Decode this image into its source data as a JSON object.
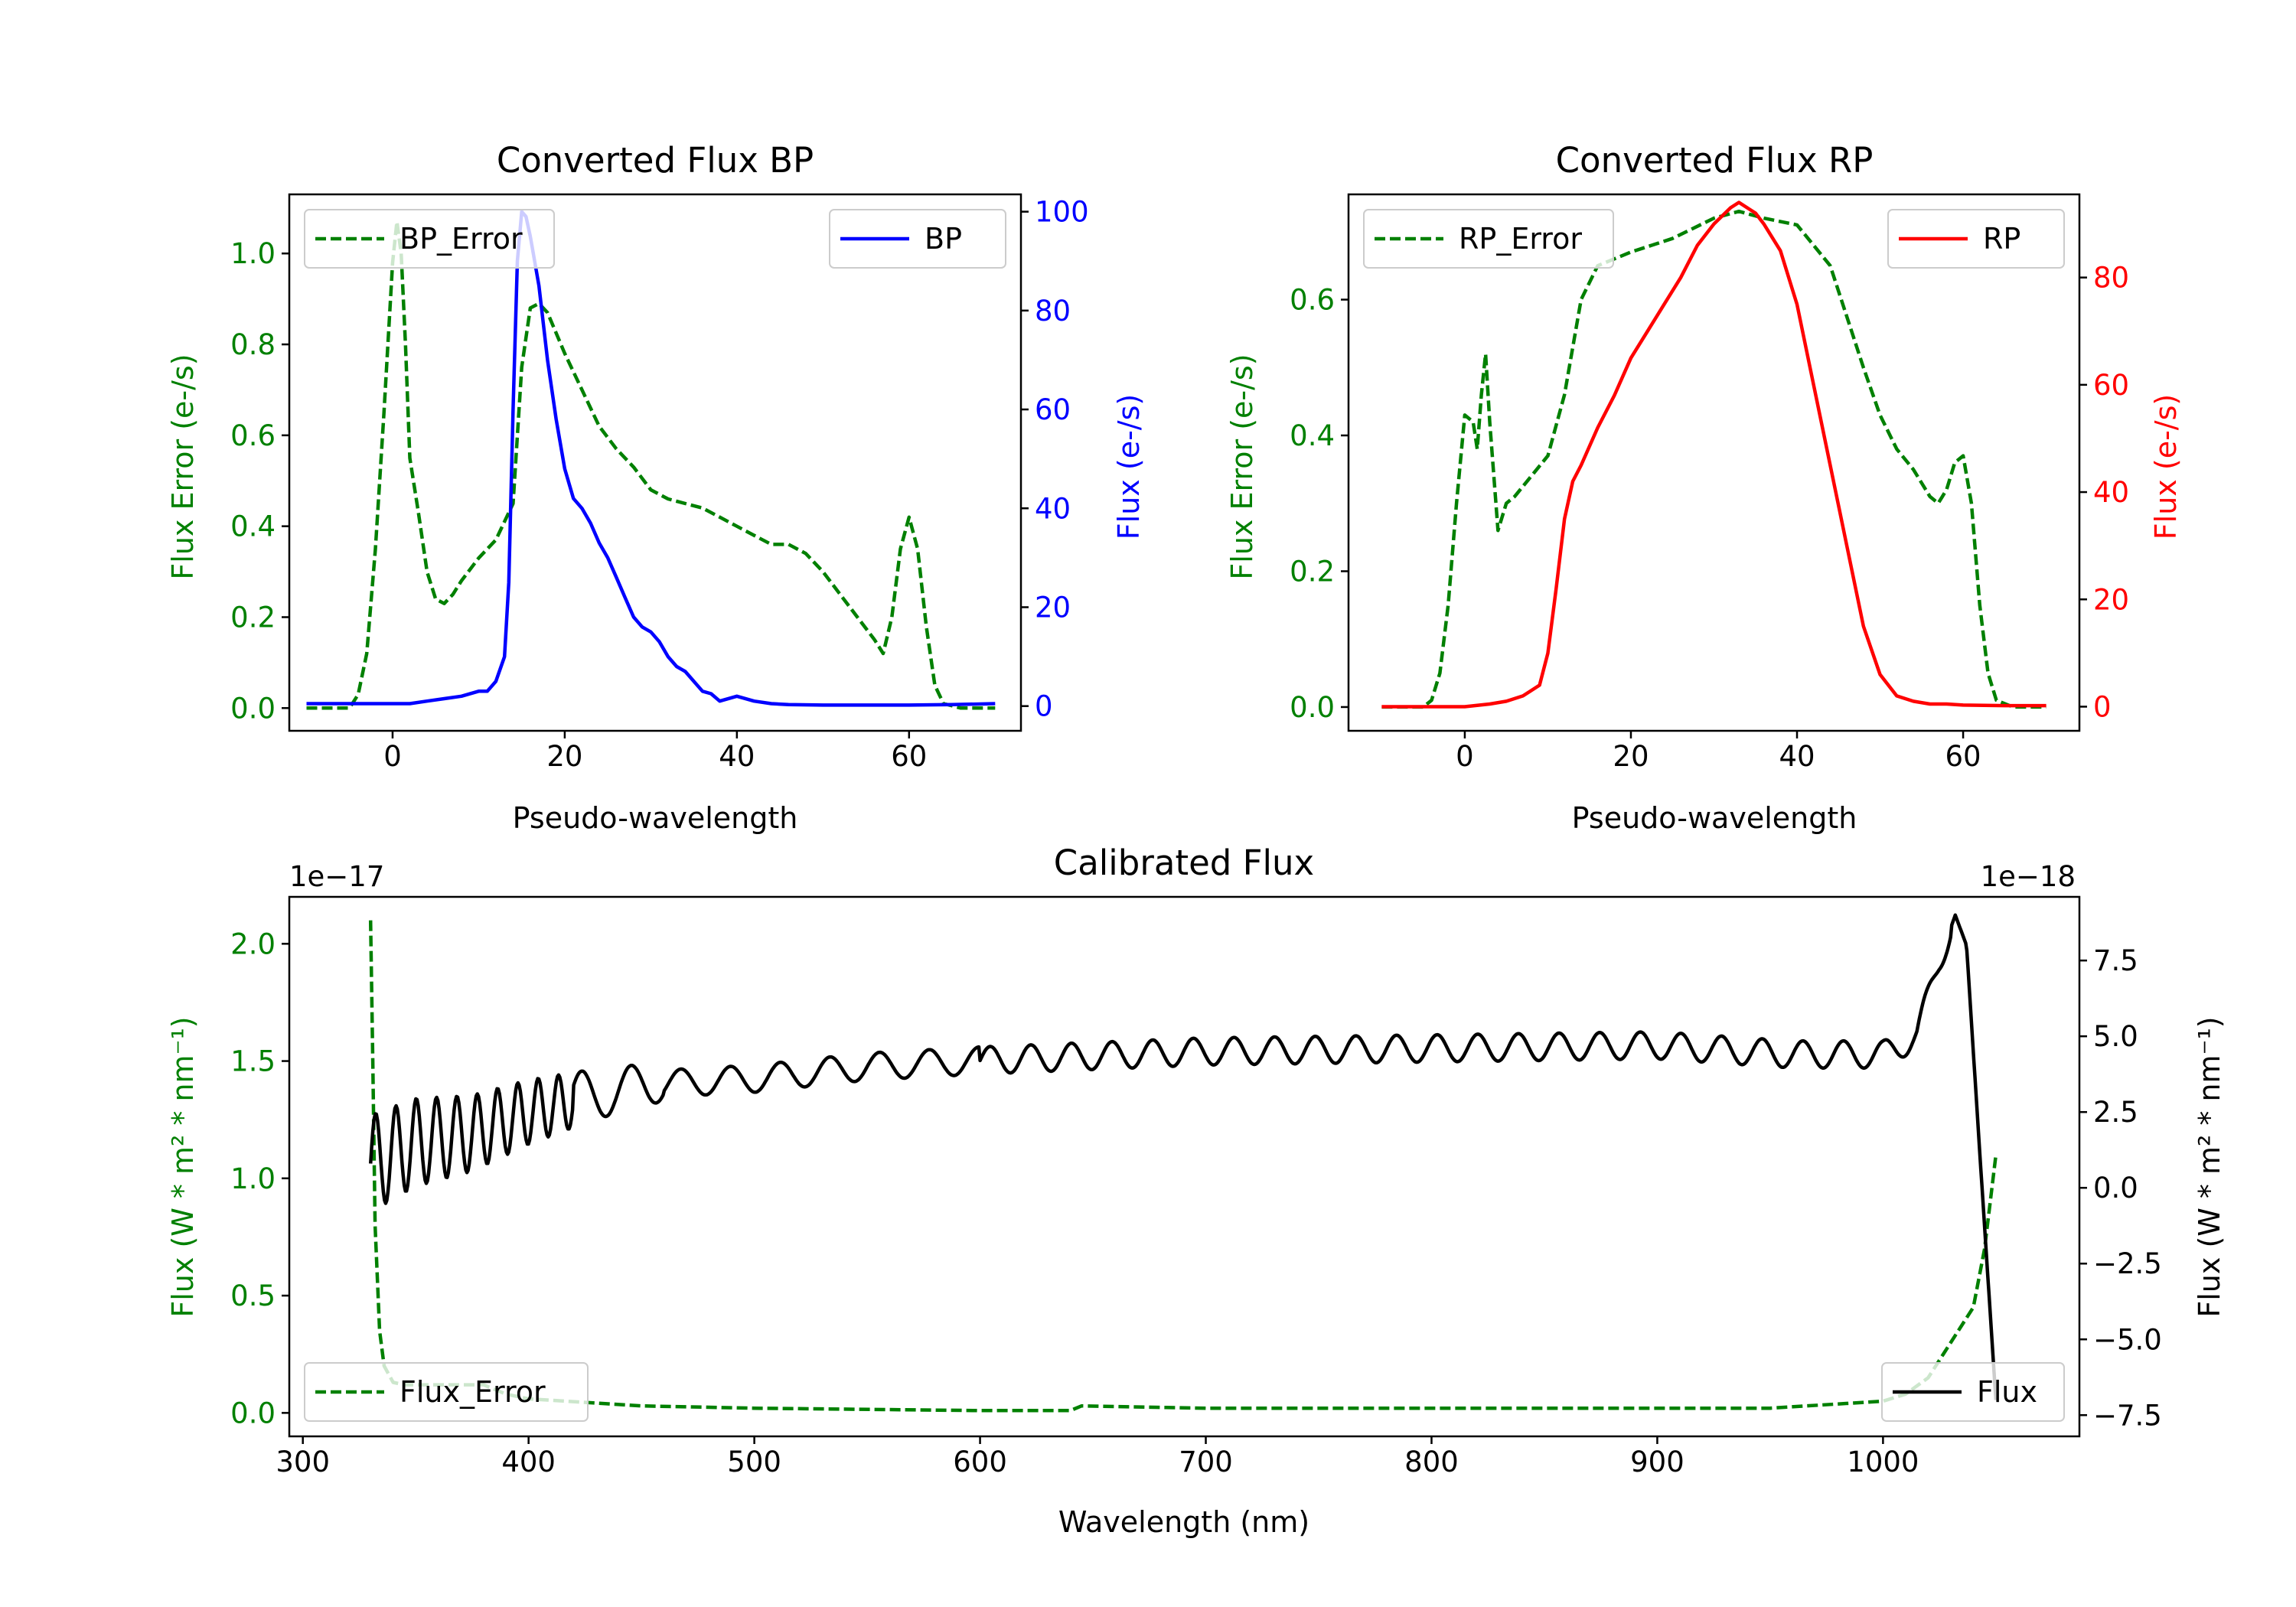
{
  "chart_data": [
    {
      "type": "line",
      "title": "Converted Flux BP",
      "xlabel": "Pseudo-wavelength",
      "ylabel_left": "Flux Error (e-/s)",
      "ylabel_right": "Flux (e-/s)",
      "xlim": [
        -12,
        73
      ],
      "ylim_left": [
        -0.05,
        1.13
      ],
      "ylim_right": [
        -5,
        103.5
      ],
      "xticks": [
        0,
        20,
        40,
        60
      ],
      "yticks_left": [
        "0.0",
        "0.2",
        "0.4",
        "0.6",
        "0.8",
        "1.0"
      ],
      "yticks_right": [
        "0",
        "20",
        "40",
        "60",
        "80",
        "100"
      ],
      "left_color": "#008000",
      "right_color": "#0000ff",
      "series": [
        {
          "name": "BP_Error",
          "axis": "left",
          "style": "dashed",
          "color": "#008000",
          "x": [
            -10,
            -5,
            -4,
            -3,
            -2,
            -1,
            0,
            0.5,
            1,
            1.5,
            2,
            3,
            4,
            5,
            6,
            7,
            8,
            10,
            12,
            14,
            15,
            16,
            17,
            18,
            20,
            22,
            24,
            26,
            28,
            30,
            32,
            34,
            36,
            38,
            40,
            42,
            44,
            46,
            48,
            50,
            52,
            54,
            56,
            57,
            58,
            59,
            60,
            61,
            62,
            63,
            64,
            66,
            70
          ],
          "y": [
            0.0,
            0.0,
            0.03,
            0.12,
            0.35,
            0.65,
            0.98,
            1.07,
            1.0,
            0.8,
            0.55,
            0.43,
            0.3,
            0.24,
            0.23,
            0.25,
            0.28,
            0.33,
            0.37,
            0.45,
            0.75,
            0.88,
            0.89,
            0.87,
            0.78,
            0.7,
            0.62,
            0.57,
            0.53,
            0.48,
            0.46,
            0.45,
            0.44,
            0.42,
            0.4,
            0.38,
            0.36,
            0.36,
            0.34,
            0.3,
            0.25,
            0.2,
            0.15,
            0.12,
            0.2,
            0.35,
            0.42,
            0.35,
            0.18,
            0.05,
            0.01,
            0.0,
            0.0
          ]
        },
        {
          "name": "BP",
          "axis": "right",
          "style": "solid",
          "color": "#0000ff",
          "x": [
            -10,
            -5,
            0,
            2,
            4,
            6,
            8,
            10,
            11,
            12,
            13,
            13.5,
            14,
            14.5,
            15,
            15.5,
            16,
            17,
            18,
            19,
            20,
            21,
            22,
            23,
            24,
            25,
            26,
            27,
            28,
            29,
            30,
            31,
            32,
            33,
            34,
            35,
            36,
            37,
            38,
            40,
            42,
            44,
            46,
            50,
            55,
            60,
            65,
            70
          ],
          "y": [
            0.5,
            0.5,
            0.5,
            0.5,
            1,
            1.5,
            2,
            3,
            3,
            5,
            10,
            25,
            60,
            90,
            100,
            99,
            95,
            85,
            70,
            58,
            48,
            42,
            40,
            37,
            33,
            30,
            26,
            22,
            18,
            16,
            15,
            13,
            10,
            8,
            7,
            5,
            3,
            2.5,
            1,
            2,
            1,
            0.5,
            0.3,
            0.2,
            0.2,
            0.2,
            0.3,
            0.5
          ]
        }
      ],
      "legend_left": "upper-left",
      "legend_right": "upper-right"
    },
    {
      "type": "line",
      "title": "Converted Flux RP",
      "xlabel": "Pseudo-wavelength",
      "ylabel_left": "Flux Error (e-/s)",
      "ylabel_right": "Flux (e-/s)",
      "xlim": [
        -14,
        74
      ],
      "ylim_left": [
        -0.035,
        0.755
      ],
      "ylim_right": [
        -4.5,
        95.5
      ],
      "xticks": [
        0,
        20,
        40,
        60
      ],
      "yticks_left": [
        "0.0",
        "0.2",
        "0.4",
        "0.6"
      ],
      "yticks_right": [
        "0",
        "20",
        "40",
        "60",
        "80"
      ],
      "left_color": "#008000",
      "right_color": "#ff0000",
      "series": [
        {
          "name": "RP_Error",
          "axis": "left",
          "style": "dashed",
          "color": "#008000",
          "x": [
            -10,
            -5,
            -4,
            -3,
            -2,
            -1,
            0,
            1,
            1.5,
            2,
            2.5,
            3,
            4,
            5,
            6,
            8,
            10,
            12,
            14,
            16,
            20,
            25,
            30,
            33,
            36,
            40,
            44,
            48,
            50,
            52,
            54,
            56,
            57,
            58,
            59,
            60,
            61,
            62,
            63,
            64,
            66,
            70
          ],
          "y": [
            0.0,
            0.0,
            0.01,
            0.05,
            0.15,
            0.3,
            0.43,
            0.42,
            0.38,
            0.46,
            0.52,
            0.42,
            0.26,
            0.3,
            0.31,
            0.34,
            0.37,
            0.46,
            0.6,
            0.65,
            0.67,
            0.69,
            0.72,
            0.73,
            0.72,
            0.71,
            0.65,
            0.5,
            0.43,
            0.38,
            0.35,
            0.31,
            0.3,
            0.32,
            0.36,
            0.37,
            0.3,
            0.15,
            0.05,
            0.01,
            0.0,
            0.0
          ]
        },
        {
          "name": "RP",
          "axis": "right",
          "style": "solid",
          "color": "#ff0000",
          "x": [
            -10,
            -5,
            0,
            3,
            5,
            7,
            8,
            9,
            10,
            11,
            12,
            13,
            14,
            16,
            18,
            20,
            22,
            24,
            26,
            28,
            30,
            32,
            33,
            34,
            35,
            36,
            38,
            40,
            42,
            44,
            46,
            48,
            50,
            52,
            54,
            56,
            58,
            60,
            65,
            70
          ],
          "y": [
            0,
            0,
            0,
            0.5,
            1,
            2,
            3,
            4,
            10,
            22,
            35,
            42,
            45,
            52,
            58,
            65,
            70,
            75,
            80,
            86,
            90,
            93,
            94,
            93,
            92,
            90,
            85,
            75,
            60,
            45,
            30,
            15,
            6,
            2,
            1,
            0.5,
            0.5,
            0.3,
            0.2,
            0.2
          ]
        }
      ],
      "legend_left": "upper-left",
      "legend_right": "upper-right"
    },
    {
      "type": "line",
      "title": "Calibrated Flux",
      "xlabel": "Wavelength (nm)",
      "ylabel_left": "Flux (W * m² * nm⁻¹)",
      "ylabel_right": "Flux (W * m² * nm⁻¹)",
      "left_offset_text": "1e−17",
      "right_offset_text": "1e−18",
      "xlim": [
        294,
        1087
      ],
      "ylim_left": [
        -0.1,
        2.2
      ],
      "ylim_right": [
        -8.2,
        9.6
      ],
      "xticks": [
        300,
        400,
        500,
        600,
        700,
        800,
        900,
        1000
      ],
      "yticks_left": [
        "0.0",
        "0.5",
        "1.0",
        "1.5",
        "2.0"
      ],
      "yticks_right": [
        "−7.5",
        "−5.0",
        "−2.5",
        "0.0",
        "2.5",
        "5.0",
        "7.5"
      ],
      "left_color": "#008000",
      "right_color": "#000000",
      "series": [
        {
          "name": "Flux_Error",
          "axis": "left",
          "style": "dashed",
          "color": "#008000",
          "x": [
            330,
            331,
            332,
            334,
            336,
            340,
            345,
            360,
            380,
            390,
            400,
            450,
            500,
            600,
            640,
            645,
            700,
            800,
            900,
            950,
            1000,
            1010,
            1020,
            1030,
            1040,
            1045,
            1050
          ],
          "y": [
            2.1,
            1.5,
            0.8,
            0.35,
            0.2,
            0.13,
            0.12,
            0.12,
            0.12,
            0.08,
            0.06,
            0.03,
            0.02,
            0.01,
            0.01,
            0.03,
            0.02,
            0.02,
            0.02,
            0.02,
            0.05,
            0.08,
            0.15,
            0.3,
            0.45,
            0.7,
            1.1
          ]
        },
        {
          "name": "Flux",
          "axis": "right",
          "style": "solid",
          "color": "#000000",
          "x_start": 330,
          "x_end": 1050,
          "y_sparse_x": [
            330,
            350,
            375,
            400,
            425,
            450,
            500,
            550,
            600,
            700,
            800,
            900,
            960,
            1000,
            1015,
            1025,
            1032,
            1037,
            1043,
            1050
          ],
          "y_sparse_y": [
            0.8,
            1.5,
            1.8,
            2.5,
            3.0,
            3.4,
            3.6,
            4.0,
            4.2,
            4.5,
            4.6,
            4.7,
            4.4,
            4.4,
            5.0,
            7.5,
            9.0,
            8.0,
            1.0,
            -7.0
          ],
          "note": "oscillating curve; amplitude decreases toward mid-range"
        }
      ],
      "legend_left": "lower-left",
      "legend_right": "lower-right"
    }
  ]
}
